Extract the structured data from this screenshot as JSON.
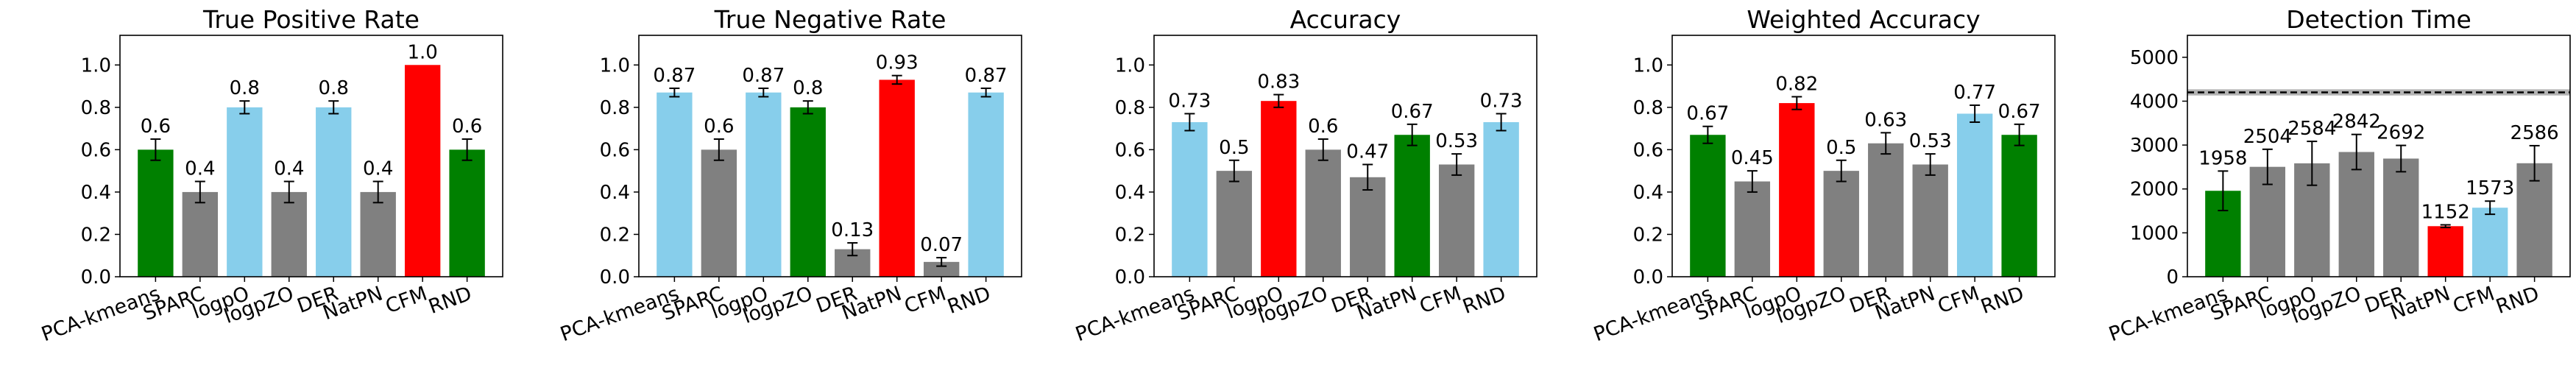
{
  "chart_data": [
    {
      "type": "bar",
      "title": "True Positive Rate",
      "categories": [
        "PCA-kmeans",
        "SPARC",
        "logpO",
        "logpZO",
        "DER",
        "NatPN",
        "CFM",
        "RND"
      ],
      "values": [
        0.6,
        0.4,
        0.8,
        0.4,
        0.8,
        0.4,
        1.0,
        0.6
      ],
      "value_labels": [
        "0.6",
        "0.4",
        "0.8",
        "0.4",
        "0.8",
        "0.4",
        "1.0",
        "0.6"
      ],
      "errors": [
        0.05,
        0.05,
        0.03,
        0.05,
        0.03,
        0.05,
        0.0,
        0.05
      ],
      "colors": [
        "#008000",
        "#808080",
        "#87CEEB",
        "#808080",
        "#87CEEB",
        "#808080",
        "#FF0000",
        "#008000"
      ],
      "ylim": [
        0,
        1.14
      ],
      "yticks": [
        0.0,
        0.2,
        0.4,
        0.6,
        0.8,
        1.0
      ],
      "ytick_labels": [
        "0.0",
        "0.2",
        "0.4",
        "0.6",
        "0.8",
        "1.0"
      ],
      "grid": false
    },
    {
      "type": "bar",
      "title": "True Negative Rate",
      "categories": [
        "PCA-kmeans",
        "SPARC",
        "logpO",
        "logpZO",
        "DER",
        "NatPN",
        "CFM",
        "RND"
      ],
      "values": [
        0.87,
        0.6,
        0.87,
        0.8,
        0.13,
        0.93,
        0.07,
        0.87
      ],
      "value_labels": [
        "0.87",
        "0.6",
        "0.87",
        "0.8",
        "0.13",
        "0.93",
        "0.07",
        "0.87"
      ],
      "errors": [
        0.02,
        0.05,
        0.02,
        0.03,
        0.03,
        0.02,
        0.02,
        0.02
      ],
      "colors": [
        "#87CEEB",
        "#808080",
        "#87CEEB",
        "#008000",
        "#808080",
        "#FF0000",
        "#808080",
        "#87CEEB"
      ],
      "ylim": [
        0,
        1.14
      ],
      "yticks": [
        0.0,
        0.2,
        0.4,
        0.6,
        0.8,
        1.0
      ],
      "ytick_labels": [
        "0.0",
        "0.2",
        "0.4",
        "0.6",
        "0.8",
        "1.0"
      ],
      "grid": false
    },
    {
      "type": "bar",
      "title": "Accuracy",
      "categories": [
        "PCA-kmeans",
        "SPARC",
        "logpO",
        "logpZO",
        "DER",
        "NatPN",
        "CFM",
        "RND"
      ],
      "values": [
        0.73,
        0.5,
        0.83,
        0.6,
        0.47,
        0.67,
        0.53,
        0.73
      ],
      "value_labels": [
        "0.73",
        "0.5",
        "0.83",
        "0.6",
        "0.47",
        "0.67",
        "0.53",
        "0.73"
      ],
      "errors": [
        0.04,
        0.05,
        0.03,
        0.05,
        0.06,
        0.05,
        0.05,
        0.04
      ],
      "colors": [
        "#87CEEB",
        "#808080",
        "#FF0000",
        "#808080",
        "#808080",
        "#008000",
        "#808080",
        "#87CEEB"
      ],
      "ylim": [
        0,
        1.14
      ],
      "yticks": [
        0.0,
        0.2,
        0.4,
        0.6,
        0.8,
        1.0
      ],
      "ytick_labels": [
        "0.0",
        "0.2",
        "0.4",
        "0.6",
        "0.8",
        "1.0"
      ],
      "grid": false
    },
    {
      "type": "bar",
      "title": "Weighted Accuracy",
      "categories": [
        "PCA-kmeans",
        "SPARC",
        "logpO",
        "logpZO",
        "DER",
        "NatPN",
        "CFM",
        "RND"
      ],
      "values": [
        0.67,
        0.45,
        0.82,
        0.5,
        0.63,
        0.53,
        0.77,
        0.67
      ],
      "value_labels": [
        "0.67",
        "0.45",
        "0.82",
        "0.5",
        "0.63",
        "0.53",
        "0.77",
        "0.67"
      ],
      "errors": [
        0.04,
        0.05,
        0.03,
        0.05,
        0.05,
        0.05,
        0.04,
        0.05
      ],
      "colors": [
        "#008000",
        "#808080",
        "#FF0000",
        "#808080",
        "#808080",
        "#808080",
        "#87CEEB",
        "#008000"
      ],
      "ylim": [
        0,
        1.14
      ],
      "yticks": [
        0.0,
        0.2,
        0.4,
        0.6,
        0.8,
        1.0
      ],
      "ytick_labels": [
        "0.0",
        "0.2",
        "0.4",
        "0.6",
        "0.8",
        "1.0"
      ],
      "grid": false
    },
    {
      "type": "bar",
      "title": "Detection Time",
      "categories": [
        "PCA-kmeans",
        "SPARC",
        "logpO",
        "logpZO",
        "DER",
        "NatPN",
        "CFM",
        "RND"
      ],
      "values": [
        1958,
        2504,
        2584,
        2842,
        2692,
        1152,
        1573,
        2586
      ],
      "value_labels": [
        "1958",
        "2504",
        "2584",
        "2842",
        "2692",
        "1152",
        "1573",
        "2586"
      ],
      "errors": [
        450,
        400,
        500,
        400,
        300,
        30,
        150,
        400
      ],
      "colors": [
        "#008000",
        "#808080",
        "#808080",
        "#808080",
        "#808080",
        "#FF0000",
        "#87CEEB",
        "#808080"
      ],
      "ylim": [
        0,
        5500
      ],
      "yticks": [
        0,
        1000,
        2000,
        3000,
        4000,
        5000
      ],
      "ytick_labels": [
        "0",
        "1000",
        "2000",
        "3000",
        "4000",
        "5000"
      ],
      "reference_line": {
        "y": 4200,
        "band": [
          4130,
          4270
        ],
        "style": "dashed"
      },
      "grid": false
    }
  ]
}
